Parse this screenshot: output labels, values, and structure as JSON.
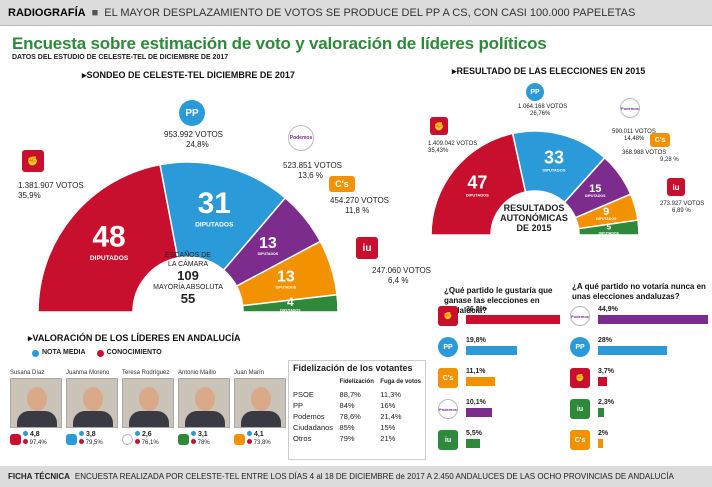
{
  "header": {
    "section": "RADIOGRAFÍA",
    "separator": "■",
    "headline": "EL MAYOR DESPLAZAMIENTO DE VOTOS SE PRODUCE DEL PP A CS, CON CASI 100.000 PAPELETAS"
  },
  "title": "Encuesta sobre estimación de voto y valoración de líderes políticos",
  "subtitle": "DATOS DEL ESTUDIO DE CELESTE-TEL DE DICIEMBRE DE 2017",
  "colors": {
    "psoe": "#c8102e",
    "pp": "#2b9ad8",
    "podemos": "#7b2c8c",
    "cs": "#f39200",
    "iu": "#2e8a3a",
    "green_title": "#2e8a3a"
  },
  "chart_data": [
    {
      "type": "pie",
      "subtype": "parliament-semicircle",
      "title": "SONDEO DE CELESTE-TEL DICIEMBRE DE 2017",
      "seat_label": "DIPUTADOS",
      "series": [
        {
          "name": "PSOE",
          "seats": 48,
          "votes": "1.381.907",
          "pct": "35,9%"
        },
        {
          "name": "PP",
          "seats": 31,
          "votes": "953.992",
          "pct": "24,8%"
        },
        {
          "name": "Podemos",
          "seats": 13,
          "votes": "523.851",
          "pct": "13,6 %"
        },
        {
          "name": "Cs",
          "seats": 13,
          "votes": "454.270",
          "pct": "11,8 %"
        },
        {
          "name": "IU",
          "seats": 4,
          "votes": "247.060",
          "pct": "6,4 %"
        }
      ],
      "votes_word": "VOTOS",
      "center": {
        "l1": "ESCAÑOS DE",
        "l2": "LA CÁMARA",
        "total": "109",
        "l3": "MAYORÍA ABSOLUTA",
        "majority": "55"
      }
    },
    {
      "type": "pie",
      "subtype": "parliament-semicircle",
      "title": "RESULTADO DE LAS ELECCIONES EN 2015",
      "seat_label": "DIPUTADOS",
      "series": [
        {
          "name": "PSOE",
          "seats": 47,
          "votes": "1.409.042",
          "pct": "35,43%"
        },
        {
          "name": "PP",
          "seats": 33,
          "votes": "1.064.168",
          "pct": "26,76%"
        },
        {
          "name": "Podemos",
          "seats": 15,
          "votes": "590.011",
          "pct": "14,48%"
        },
        {
          "name": "Cs",
          "seats": 9,
          "votes": "368.988",
          "pct": "9,28 %"
        },
        {
          "name": "IU",
          "seats": 5,
          "votes": "273.927",
          "pct": "6,89 %"
        }
      ],
      "votes_word": "VOTOS",
      "center": {
        "l1": "RESULTADOS",
        "l2": "AUTONÓMICAS",
        "l3": "DE 2015"
      }
    },
    {
      "type": "bar",
      "title": "¿Qué partido le gustaría que ganase las elecciones en Andalucía?",
      "categories": [
        "PSOE",
        "PP",
        "Cs",
        "Podemos",
        "IU"
      ],
      "values": [
        36.2,
        19.8,
        11.1,
        10.1,
        5.5
      ],
      "labels": [
        "36,2%",
        "19,8%",
        "11,1%",
        "10,1%",
        "5,5%"
      ]
    },
    {
      "type": "bar",
      "title": "¿A qué partido no votaría nunca en unas elecciones andaluzas?",
      "categories": [
        "Podemos",
        "PP",
        "PSOE",
        "IU",
        "Cs"
      ],
      "values": [
        44.9,
        28,
        3.7,
        2.3,
        2
      ],
      "labels": [
        "44,9%",
        "28%",
        "3,7%",
        "2,3%",
        "2%"
      ]
    },
    {
      "type": "table",
      "title": "Fidelización de los votantes",
      "columns": [
        "",
        "Fidelización",
        "Fuga de votos"
      ],
      "rows": [
        [
          "PSOE",
          "88,7%",
          "11,3%"
        ],
        [
          "PP",
          "84%",
          "16%"
        ],
        [
          "Podemos",
          "78,6%",
          "21,4%"
        ],
        [
          "Ciudadanos",
          "85%",
          "15%"
        ],
        [
          "Otros",
          "79%",
          "21%"
        ]
      ]
    }
  ],
  "leaders": {
    "title": "VALORACIÓN DE LOS LÍDERES EN ANDALUCÍA",
    "legend_note": "NOTA MEDIA",
    "legend_know": "CONOCIMIENTO",
    "people": [
      {
        "name": "Susana Díaz",
        "party": "PSOE",
        "note": "4,8",
        "know": "97,4%"
      },
      {
        "name": "Juanma Moreno",
        "party": "PP",
        "note": "3,8",
        "know": "79,5%"
      },
      {
        "name": "Teresa Rodríguez",
        "party": "Podemos",
        "note": "2,6",
        "know": "76,1%"
      },
      {
        "name": "Antonio Maíllo",
        "party": "IU",
        "note": "3,1",
        "know": "78%"
      },
      {
        "name": "Juan Marín",
        "party": "Cs",
        "note": "4,1",
        "know": "73,8%"
      }
    ]
  },
  "logos": {
    "pp": "PP",
    "cs": "C's",
    "podemos": "Podemos",
    "iu": "iu"
  },
  "footer": {
    "key": "FICHA TÉCNICA",
    "text": "ENCUESTA REALIZADA POR CELESTE-TEL ENTRE LOS DÍAS 4 al 18 DE DICIEMBRE de 2017 A 2.450 ANDALUCES DE LAS OCHO PROVINCIAS DE ANDALUCÍA"
  }
}
